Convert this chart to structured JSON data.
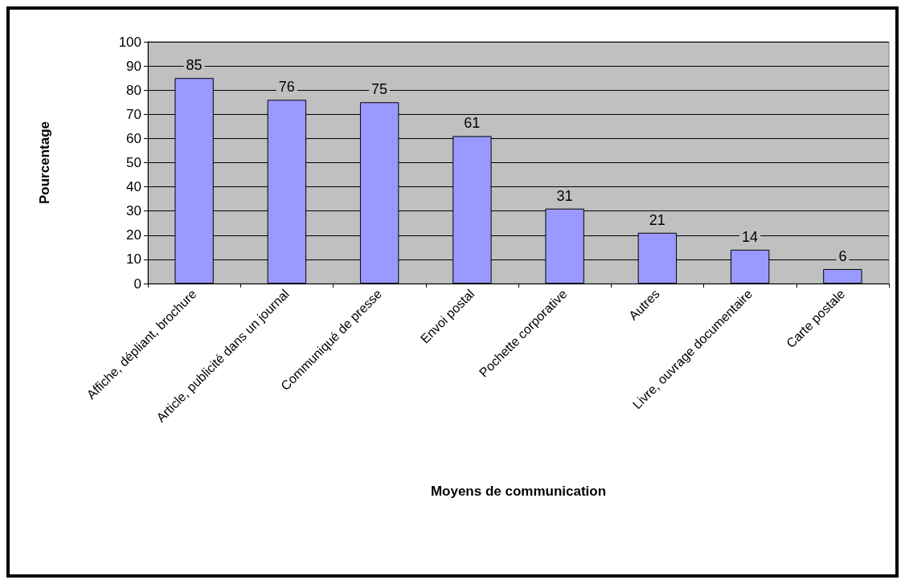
{
  "chart_data": {
    "type": "bar",
    "xlabel": "Moyens de communication",
    "ylabel": "Pourcentage",
    "categories": [
      "Affiche, dépliant, brochure",
      "Article, publicité dans un journal",
      "Communiqué de presse",
      "Envoi postal",
      "Pochette corporative",
      "Autres",
      "Livre, ouvrage documentaire",
      "Carte postale"
    ],
    "values": [
      85,
      76,
      75,
      61,
      31,
      21,
      14,
      6
    ],
    "color": "#9999ff",
    "ylim": [
      0,
      100
    ],
    "yticks": [
      0,
      10,
      20,
      30,
      40,
      50,
      60,
      70,
      80,
      90,
      100
    ],
    "grid": "y",
    "data_labels": true
  }
}
